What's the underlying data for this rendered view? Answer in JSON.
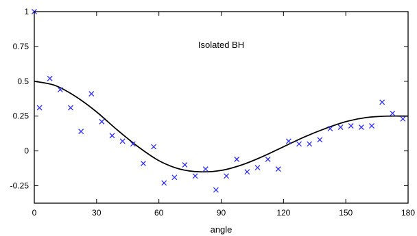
{
  "chart_data": {
    "type": "scatter",
    "annotation": "Isolated BH",
    "xlabel": "angle",
    "ylabel": "",
    "xlim": [
      0,
      180
    ],
    "ylim": [
      -0.375,
      1.0
    ],
    "x_ticks": [
      0,
      30,
      60,
      90,
      120,
      150,
      180
    ],
    "x_tick_labels": [
      "0",
      "30",
      "60",
      "90",
      "120",
      "150",
      "180"
    ],
    "y_ticks": [
      1,
      0.75,
      0.5,
      0.25,
      0,
      -0.25
    ],
    "y_tick_labels": [
      "1",
      "0.75",
      "0.5",
      "0.25",
      "0",
      "-0.25"
    ],
    "grid": false,
    "colors": {
      "points": "#3030ff",
      "curve": "#000000",
      "frame": "#000000"
    },
    "series": [
      {
        "kind": "points",
        "marker": "x",
        "x": [
          0,
          2.5,
          7.5,
          12.5,
          17.5,
          22.5,
          27.5,
          32.5,
          37.5,
          42.5,
          47.5,
          52.5,
          57.5,
          62.5,
          67.5,
          72.5,
          77.5,
          82.5,
          87.5,
          92.5,
          97.5,
          102.5,
          107.5,
          112.5,
          117.5,
          122.5,
          127.5,
          132.5,
          137.5,
          142.5,
          147.5,
          152.5,
          157.5,
          162.5,
          167.5,
          172.5,
          177.5
        ],
        "y": [
          1.0,
          0.31,
          0.52,
          0.44,
          0.31,
          0.14,
          0.41,
          0.21,
          0.11,
          0.07,
          0.05,
          -0.09,
          0.03,
          -0.23,
          -0.19,
          -0.1,
          -0.18,
          -0.13,
          -0.28,
          -0.18,
          -0.06,
          -0.15,
          -0.12,
          -0.06,
          -0.13,
          0.07,
          0.05,
          0.05,
          0.08,
          0.16,
          0.17,
          0.18,
          0.17,
          0.18,
          0.35,
          0.27,
          0.23
        ]
      },
      {
        "kind": "curve",
        "x": [
          0,
          10,
          20,
          30,
          40,
          50,
          60,
          70,
          80,
          90,
          100,
          110,
          120,
          130,
          140,
          150,
          160,
          170,
          180
        ],
        "y": [
          0.5,
          0.47,
          0.39,
          0.28,
          0.15,
          0.03,
          -0.07,
          -0.13,
          -0.15,
          -0.14,
          -0.1,
          -0.04,
          0.03,
          0.1,
          0.16,
          0.21,
          0.24,
          0.25,
          0.25
        ]
      }
    ]
  }
}
